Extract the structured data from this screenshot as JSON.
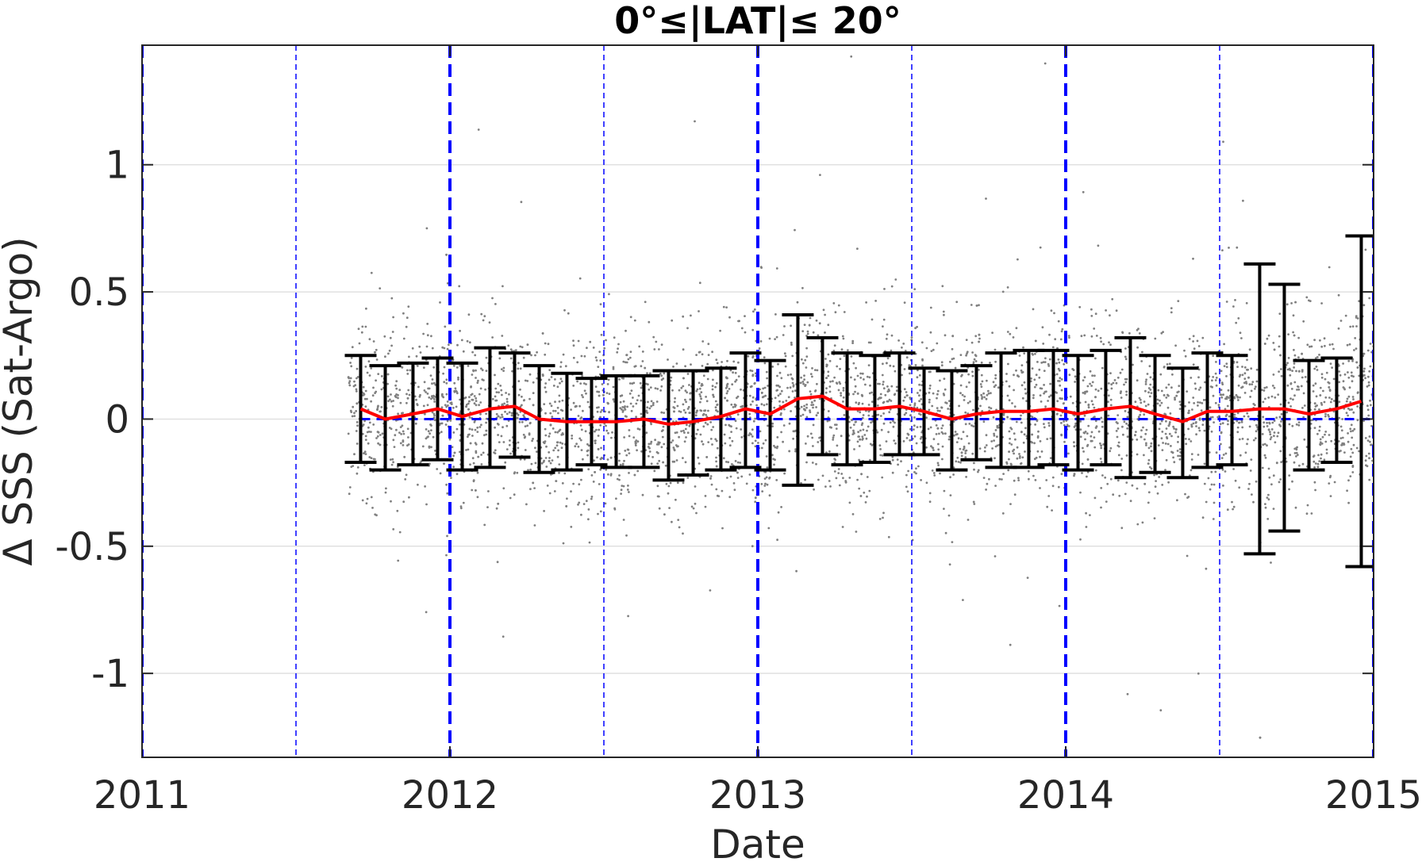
{
  "chart_data": {
    "type": "scatter",
    "title": "0°≤|LAT|≤ 20°",
    "xlabel": "Date",
    "ylabel": "Δ SSS (Sat-Argo)",
    "xlim": [
      2011.0,
      2015.0
    ],
    "ylim": [
      -1.33,
      1.47
    ],
    "xticks": [
      {
        "value": 2011,
        "label": "2011"
      },
      {
        "value": 2012,
        "label": "2012"
      },
      {
        "value": 2013,
        "label": "2013"
      },
      {
        "value": 2014,
        "label": "2014"
      },
      {
        "value": 2015,
        "label": "2015"
      }
    ],
    "yticks": [
      {
        "value": -1,
        "label": "-1"
      },
      {
        "value": -0.5,
        "label": "-0.5"
      },
      {
        "value": 0,
        "label": "0"
      },
      {
        "value": 0.5,
        "label": "0.5"
      },
      {
        "value": 1,
        "label": "1"
      }
    ],
    "grid": "horizontal",
    "colors": {
      "scatter": "#808080",
      "mean_line": "#ff0000",
      "errorbars": "#000000",
      "reference_lines": "#0000ff",
      "grid": "#e0e0e0"
    },
    "scatter_cloud": {
      "x_start": 2011.67,
      "x_end": 2015.0,
      "typical_spread_sd": 0.17
    },
    "reference_lines": {
      "zero_level": 0,
      "year_lines": [
        2011.0,
        2012.0,
        2013.0,
        2014.0,
        2015.0
      ],
      "half_year_lines": [
        2011.5,
        2012.5,
        2013.5,
        2014.5
      ]
    },
    "series": [
      {
        "x": [
          2011.71,
          2011.79,
          2011.88,
          2011.96,
          2012.04,
          2012.13,
          2012.21,
          2012.29,
          2012.38,
          2012.46,
          2012.54,
          2012.63,
          2012.71,
          2012.79,
          2012.88,
          2012.96,
          2013.04,
          2013.13,
          2013.21,
          2013.29,
          2013.38,
          2013.46,
          2013.54,
          2013.63,
          2013.71,
          2013.79,
          2013.88,
          2013.96,
          2014.04,
          2014.13,
          2014.21,
          2014.29,
          2014.38,
          2014.46,
          2014.54,
          2014.63,
          2014.71,
          2014.79,
          2014.88,
          2014.96
        ],
        "mean": [
          0.04,
          0.0,
          0.02,
          0.04,
          0.01,
          0.04,
          0.05,
          0.0,
          -0.01,
          -0.01,
          -0.01,
          0.0,
          -0.02,
          -0.01,
          0.01,
          0.04,
          0.02,
          0.08,
          0.09,
          0.04,
          0.04,
          0.05,
          0.03,
          0.0,
          0.02,
          0.03,
          0.03,
          0.04,
          0.02,
          0.04,
          0.05,
          0.02,
          -0.01,
          0.03,
          0.03,
          0.04,
          0.04,
          0.02,
          0.04,
          0.07
        ],
        "upper": [
          0.25,
          0.21,
          0.22,
          0.24,
          0.22,
          0.28,
          0.26,
          0.21,
          0.18,
          0.16,
          0.17,
          0.17,
          0.19,
          0.19,
          0.2,
          0.26,
          0.23,
          0.41,
          0.32,
          0.26,
          0.25,
          0.26,
          0.2,
          0.19,
          0.21,
          0.26,
          0.27,
          0.27,
          0.25,
          0.27,
          0.32,
          0.25,
          0.2,
          0.26,
          0.25,
          0.61,
          0.53,
          0.23,
          0.24,
          0.72
        ],
        "lower": [
          -0.17,
          -0.2,
          -0.18,
          -0.16,
          -0.2,
          -0.19,
          -0.15,
          -0.21,
          -0.2,
          -0.18,
          -0.19,
          -0.19,
          -0.24,
          -0.22,
          -0.2,
          -0.19,
          -0.2,
          -0.26,
          -0.14,
          -0.18,
          -0.17,
          -0.14,
          -0.14,
          -0.2,
          -0.16,
          -0.19,
          -0.19,
          -0.18,
          -0.2,
          -0.18,
          -0.23,
          -0.21,
          -0.23,
          -0.19,
          -0.18,
          -0.53,
          -0.44,
          -0.2,
          -0.17,
          -0.58
        ]
      }
    ]
  }
}
